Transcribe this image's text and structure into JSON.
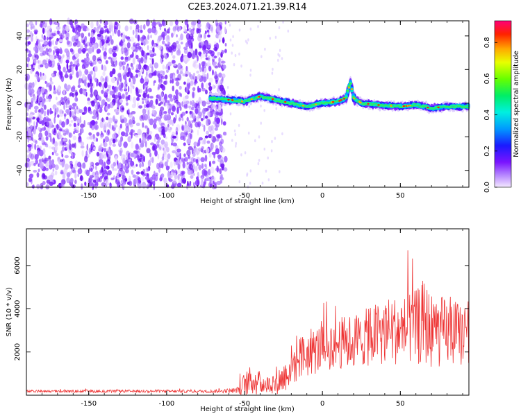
{
  "title": "C2E3.2024.071.21.39.R14",
  "chart_data": [
    {
      "type": "heatmap",
      "title": "C2E3.2024.071.21.39.R14",
      "xlabel": "Height of straight line (km)",
      "ylabel": "Frequency (Hz)",
      "xlim": [
        -190,
        94
      ],
      "ylim": [
        -50,
        49
      ],
      "xticks": [
        -150,
        -100,
        -50,
        0,
        50
      ],
      "yticks": [
        -40,
        -20,
        0,
        20,
        40
      ],
      "colorbar": {
        "label": "Normalized spectral amplitude",
        "range": [
          0.0,
          0.92
        ],
        "ticks": [
          0.0,
          0.2,
          0.4,
          0.6,
          0.8
        ]
      },
      "noise_region_x": [
        -190,
        -62
      ],
      "signal_track": {
        "x": [
          -72,
          -60,
          -50,
          -40,
          -30,
          -20,
          -10,
          0,
          10,
          15,
          18,
          20,
          25,
          35,
          50,
          60,
          70,
          80,
          90
        ],
        "frequency_hz": [
          3,
          2,
          1,
          4,
          2,
          0,
          -2,
          0,
          1,
          3,
          12,
          3,
          0,
          -1,
          -2,
          -1,
          -3,
          -2,
          -2
        ]
      }
    },
    {
      "type": "line",
      "xlabel": "Height of straight line (km)",
      "ylabel": "SNR (10 * v/v)",
      "xlim": [
        -190,
        94
      ],
      "ylim": [
        0,
        7700
      ],
      "xticks": [
        -150,
        -100,
        -50,
        0,
        50
      ],
      "yticks": [
        2000,
        4000,
        6000
      ],
      "color": "#ee3333",
      "envelope": {
        "x": [
          -190,
          -70,
          -55,
          -50,
          -45,
          -40,
          -35,
          -30,
          -25,
          -20,
          -10,
          0,
          10,
          20,
          30,
          40,
          50,
          60,
          65,
          70,
          80,
          90,
          94
        ],
        "mean": [
          180,
          180,
          220,
          500,
          700,
          550,
          500,
          600,
          800,
          1400,
          1900,
          2200,
          2400,
          2500,
          2700,
          3000,
          3000,
          3100,
          3400,
          3000,
          2900,
          2800,
          2800
        ],
        "spread": [
          70,
          90,
          150,
          700,
          900,
          700,
          500,
          700,
          900,
          1200,
          1400,
          1400,
          1500,
          1600,
          1700,
          2000,
          2000,
          2200,
          2500,
          2200,
          2000,
          1800,
          1800
        ]
      }
    }
  ]
}
